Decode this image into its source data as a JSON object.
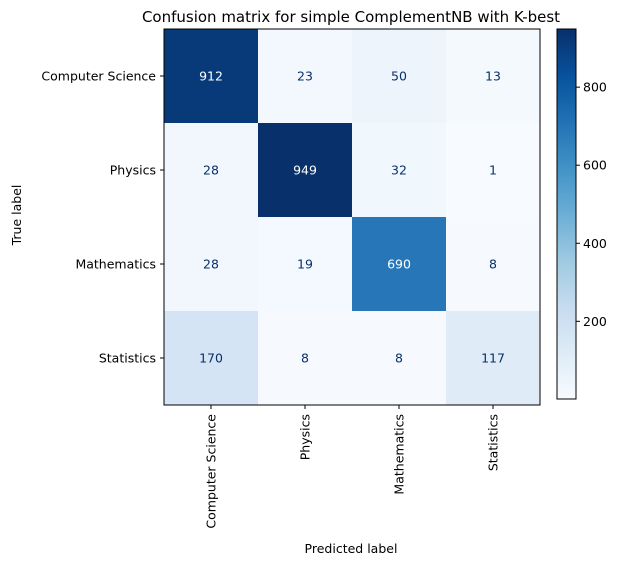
{
  "chart_data": {
    "type": "heatmap",
    "title": "Confusion matrix for simple ComplementNB with K-best",
    "xlabel": "Predicted label",
    "ylabel": "True label",
    "x_categories": [
      "Computer Science",
      "Physics",
      "Mathematics",
      "Statistics"
    ],
    "y_categories": [
      "Computer Science",
      "Physics",
      "Mathematics",
      "Statistics"
    ],
    "values": [
      [
        912,
        23,
        50,
        13
      ],
      [
        28,
        949,
        32,
        1
      ],
      [
        28,
        19,
        690,
        8
      ],
      [
        170,
        8,
        8,
        117
      ]
    ],
    "colormap": "Blues",
    "colorbar": {
      "min": 1,
      "max": 949,
      "ticks": [
        200,
        400,
        600,
        800
      ]
    },
    "grid": false
  }
}
